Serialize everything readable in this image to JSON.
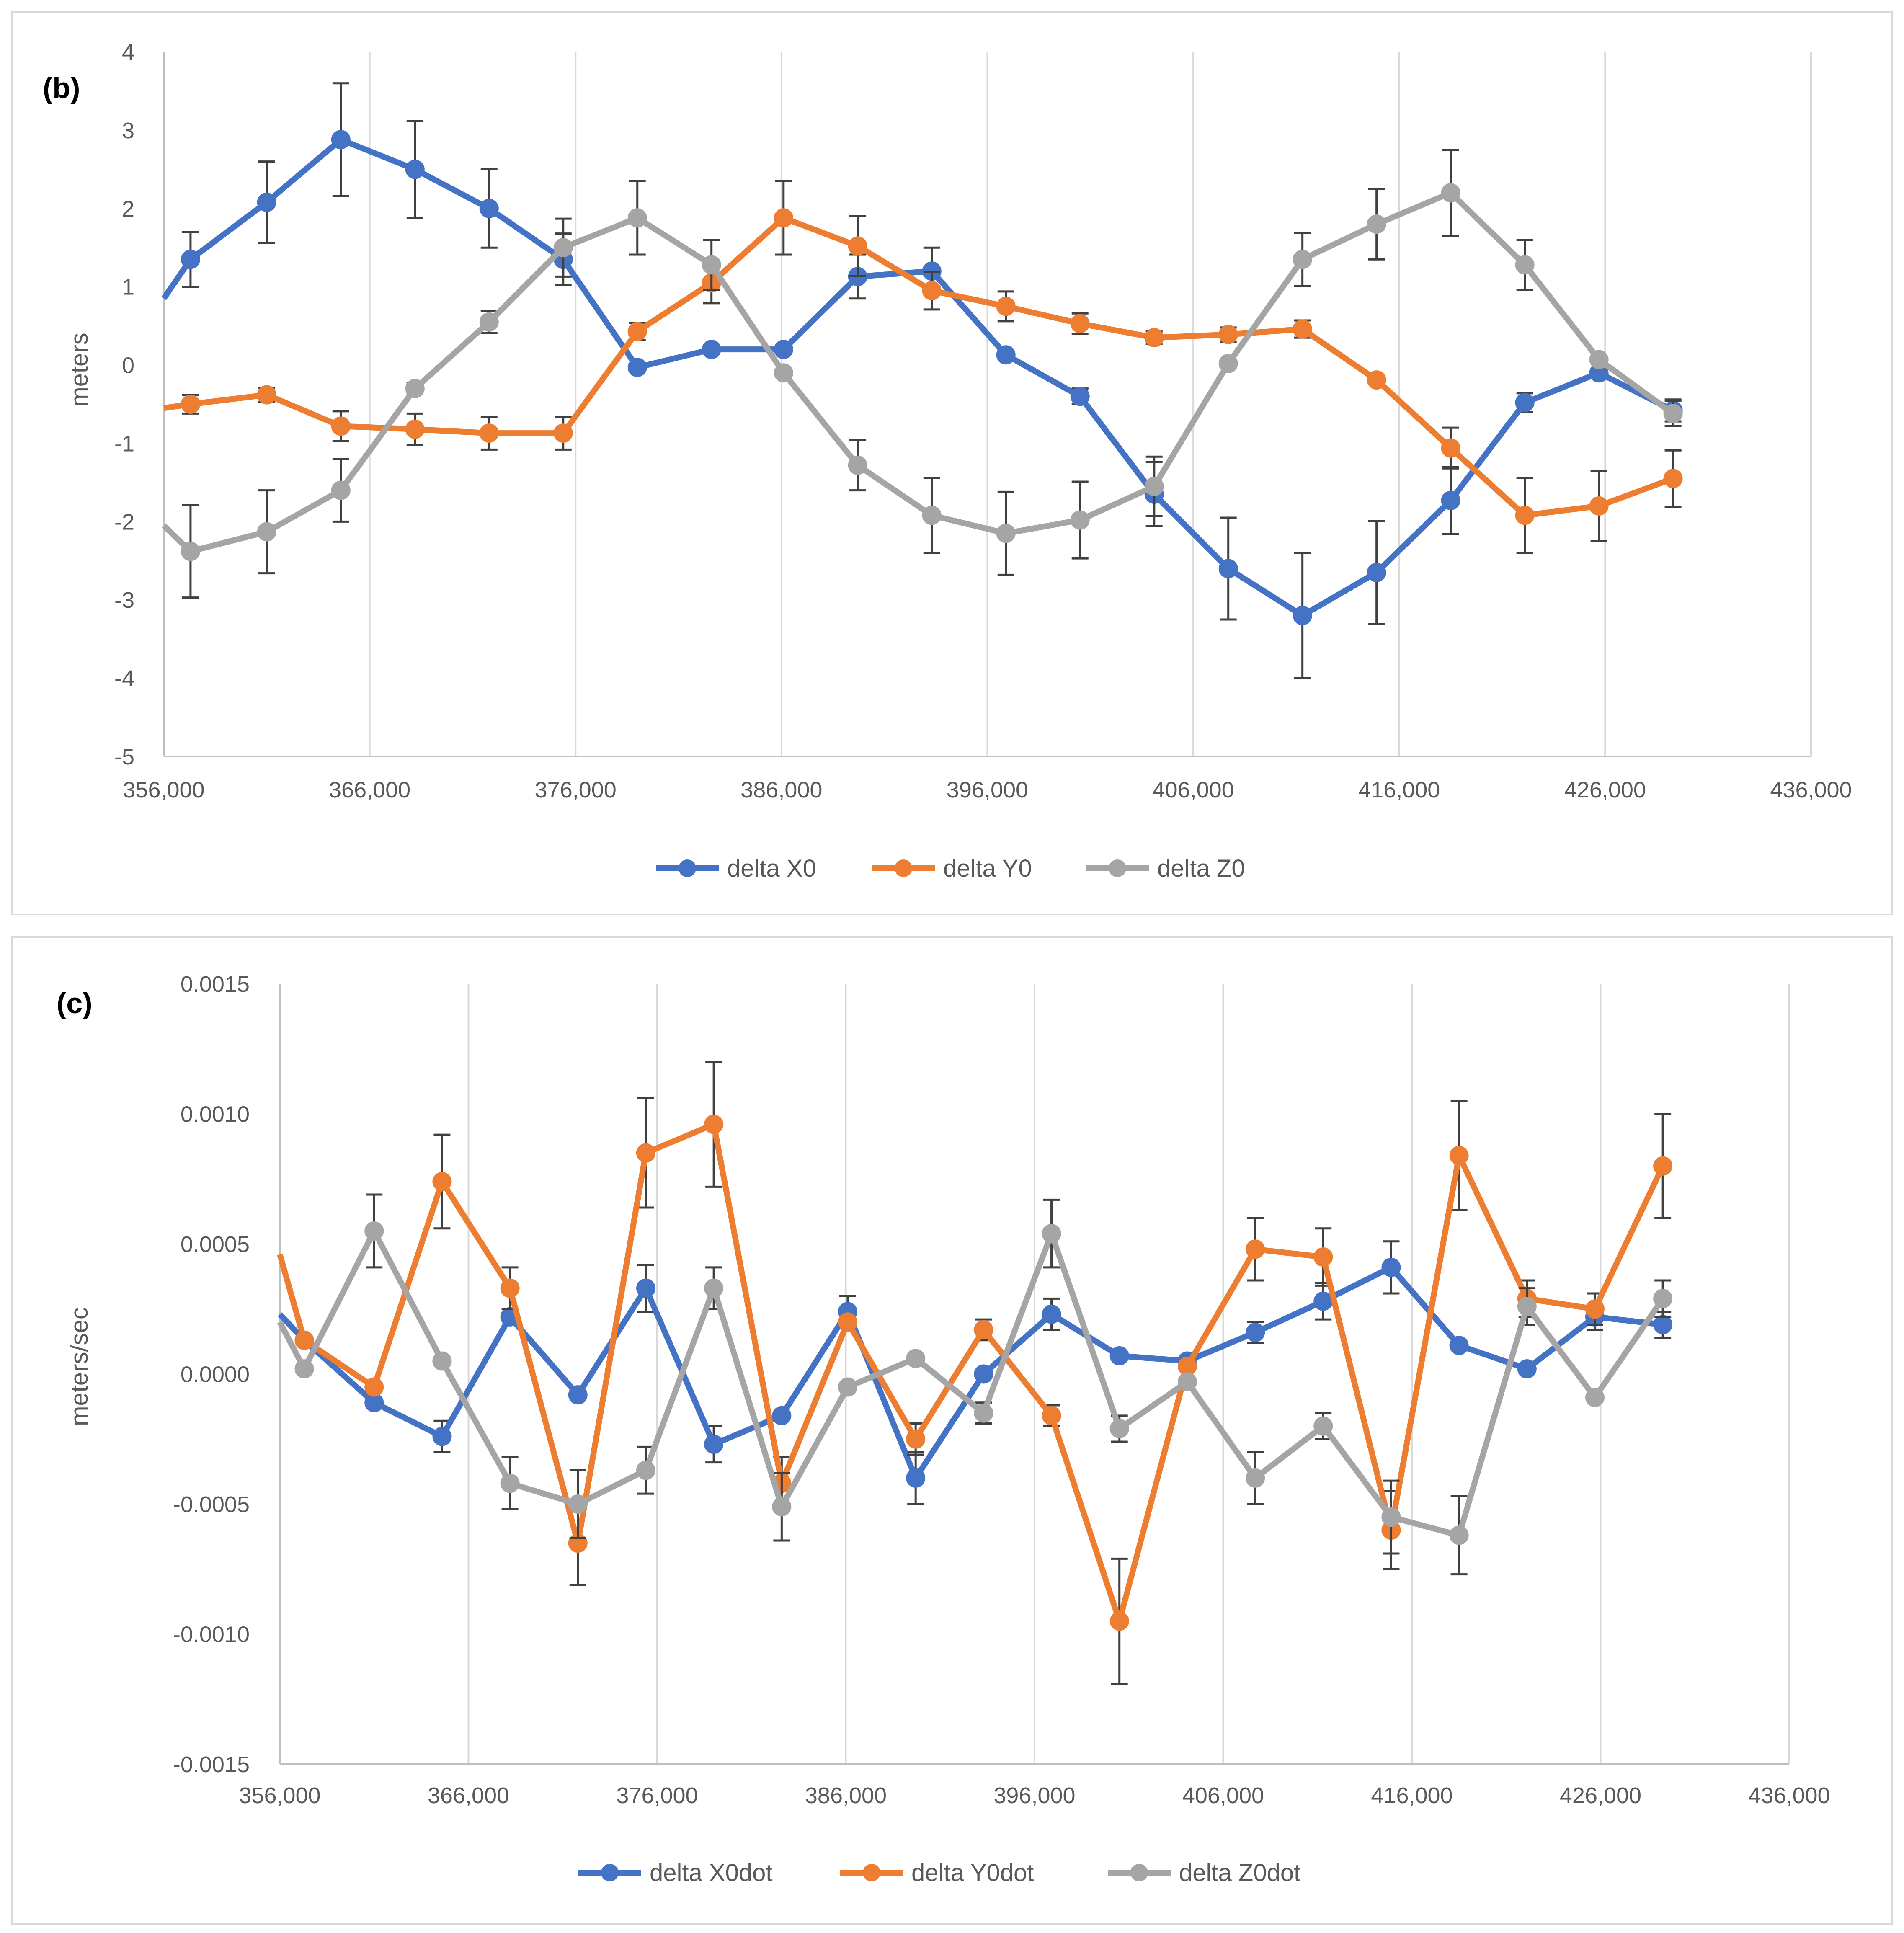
{
  "colors": {
    "series1": "#4472c4",
    "series2": "#ed7d31",
    "series3": "#a5a5a5",
    "grid": "#d9d9d9",
    "axis": "#bfbfbf",
    "error_bar": "#404040",
    "text": "#595959"
  },
  "chart_data": [
    {
      "id": "b",
      "type": "line",
      "panel_label": "(b)",
      "title": "",
      "xlabel": "",
      "ylabel": "meters",
      "xlim": [
        356000,
        436000
      ],
      "ylim": [
        -5,
        4
      ],
      "x_ticks": [
        356000,
        366000,
        376000,
        386000,
        396000,
        406000,
        416000,
        426000,
        436000
      ],
      "x_tick_labels": [
        "356,000",
        "366,000",
        "376,000",
        "386,000",
        "396,000",
        "406,000",
        "416,000",
        "426,000",
        "436,000"
      ],
      "y_ticks": [
        4,
        3,
        2,
        1,
        0,
        -1,
        -2,
        -3,
        -4,
        -5
      ],
      "y_tick_labels": [
        "4",
        "3",
        "2",
        "1",
        "0",
        "-1",
        "-2",
        "-3",
        "-4",
        "-5"
      ],
      "grid": "vertical",
      "legend": "bottom",
      "series": [
        {
          "name": "delta X0",
          "color": "#4472c4",
          "x": [
            356000,
            357300,
            361000,
            364600,
            368200,
            371800,
            375400,
            379000,
            382600,
            386100,
            389700,
            393300,
            396900,
            400500,
            404100,
            407700,
            411300,
            414900,
            418500,
            422100,
            425700,
            429300
          ],
          "y": [
            0.85,
            1.35,
            2.08,
            2.88,
            2.5,
            2.0,
            1.35,
            -0.03,
            0.2,
            0.2,
            1.13,
            1.2,
            0.13,
            -0.4,
            -1.65,
            -2.6,
            -3.2,
            -2.65,
            -1.73,
            -0.48,
            -0.1,
            -0.58
          ],
          "err": [
            0,
            0.35,
            0.52,
            0.72,
            0.62,
            0.5,
            0.33,
            0.03,
            0.05,
            0.05,
            0.28,
            0.3,
            0.03,
            0.1,
            0.41,
            0.65,
            0.8,
            0.66,
            0.43,
            0.12,
            0.03,
            0.14
          ],
          "markers": [
            false,
            true,
            true,
            true,
            true,
            true,
            true,
            true,
            true,
            true,
            true,
            true,
            true,
            true,
            true,
            true,
            true,
            true,
            true,
            true,
            true,
            true
          ]
        },
        {
          "name": "delta Y0",
          "color": "#ed7d31",
          "x": [
            356000,
            357300,
            361000,
            364600,
            368200,
            371800,
            375400,
            379000,
            382600,
            386100,
            389700,
            393300,
            396900,
            400500,
            404100,
            407700,
            411300,
            414900,
            418500,
            422100,
            425700,
            429300
          ],
          "y": [
            -0.55,
            -0.5,
            -0.38,
            -0.78,
            -0.82,
            -0.87,
            -0.87,
            0.43,
            1.05,
            1.88,
            1.52,
            0.95,
            0.75,
            0.53,
            0.35,
            0.39,
            0.46,
            -0.19,
            -1.06,
            -1.92,
            -1.8,
            -1.45
          ],
          "err": [
            0,
            0.12,
            0.09,
            0.19,
            0.2,
            0.21,
            0.21,
            0.11,
            0.26,
            0.47,
            0.38,
            0.24,
            0.19,
            0.13,
            0.08,
            0.09,
            0.11,
            0.05,
            0.26,
            0.48,
            0.45,
            0.36
          ],
          "markers": [
            false,
            true,
            true,
            true,
            true,
            true,
            true,
            true,
            true,
            true,
            true,
            true,
            true,
            true,
            true,
            true,
            true,
            true,
            true,
            true,
            true,
            true
          ]
        },
        {
          "name": "delta Z0",
          "color": "#a5a5a5",
          "x": [
            356000,
            357300,
            361000,
            364600,
            368200,
            371800,
            375400,
            379000,
            382600,
            386100,
            389700,
            393300,
            396900,
            400500,
            404100,
            407700,
            411300,
            414900,
            418500,
            422100,
            425700,
            429300
          ],
          "y": [
            -2.05,
            -2.38,
            -2.13,
            -1.6,
            -0.3,
            0.55,
            1.5,
            1.88,
            1.28,
            -0.1,
            -1.28,
            -1.92,
            -2.15,
            -1.98,
            -1.55,
            0.02,
            1.35,
            1.8,
            2.2,
            1.28,
            0.07,
            -0.62
          ],
          "err": [
            0,
            0.59,
            0.53,
            0.4,
            0.07,
            0.14,
            0.37,
            0.47,
            0.32,
            0.03,
            0.32,
            0.48,
            0.53,
            0.49,
            0.38,
            0.01,
            0.34,
            0.45,
            0.55,
            0.32,
            0.02,
            0.16
          ],
          "markers": [
            false,
            true,
            true,
            true,
            true,
            true,
            true,
            true,
            true,
            true,
            true,
            true,
            true,
            true,
            true,
            true,
            true,
            true,
            true,
            true,
            true,
            true
          ]
        }
      ]
    },
    {
      "id": "c",
      "type": "line",
      "panel_label": "(c)",
      "title": "",
      "xlabel": "",
      "ylabel": "meters/sec",
      "xlim": [
        356000,
        436000
      ],
      "ylim": [
        -0.0015,
        0.0015
      ],
      "x_ticks": [
        356000,
        366000,
        376000,
        386000,
        396000,
        406000,
        416000,
        426000,
        436000
      ],
      "x_tick_labels": [
        "356,000",
        "366,000",
        "376,000",
        "386,000",
        "396,000",
        "406,000",
        "416,000",
        "426,000",
        "436,000"
      ],
      "y_ticks": [
        0.0015,
        0.001,
        0.0005,
        0,
        -0.0005,
        -0.001,
        -0.0015
      ],
      "y_tick_labels": [
        "0.0015",
        "0.0010",
        "0.0005",
        "0.0000",
        "-0.0005",
        "-0.0010",
        "-0.0015"
      ],
      "grid": "vertical",
      "legend": "bottom",
      "series": [
        {
          "name": "delta X0dot",
          "color": "#4472c4",
          "x": [
            356000,
            357300,
            361000,
            364600,
            368200,
            371800,
            375400,
            379000,
            382600,
            386100,
            389700,
            393300,
            396900,
            400500,
            404100,
            407700,
            411300,
            414900,
            418500,
            422100,
            425700,
            429300
          ],
          "y": [
            0.00023,
            0.00013,
            -0.00011,
            -0.00024,
            0.00022,
            -8e-05,
            0.00033,
            -0.00027,
            -0.00016,
            0.00024,
            -0.0004,
            0.0,
            0.00023,
            7e-05,
            5e-05,
            0.00016,
            0.00028,
            0.00041,
            0.00011,
            2e-05,
            0.00022,
            0.00019
          ],
          "err": [
            0,
            0,
            0,
            6e-05,
            0,
            0,
            9e-05,
            7e-05,
            0,
            6e-05,
            0.0001,
            0,
            6e-05,
            0,
            0,
            4e-05,
            7e-05,
            0.0001,
            0,
            0,
            5e-05,
            5e-05
          ],
          "markers": [
            false,
            true,
            true,
            true,
            true,
            true,
            true,
            true,
            true,
            true,
            true,
            true,
            true,
            true,
            true,
            true,
            true,
            true,
            true,
            true,
            true,
            true
          ]
        },
        {
          "name": "delta Y0dot",
          "color": "#ed7d31",
          "x": [
            356000,
            357300,
            361000,
            364600,
            368200,
            371800,
            375400,
            379000,
            382600,
            386100,
            389700,
            393300,
            396900,
            400500,
            404100,
            407700,
            411300,
            414900,
            418500,
            422100,
            425700,
            429300
          ],
          "y": [
            0.00046,
            0.00013,
            -5e-05,
            0.00074,
            0.00033,
            -0.00065,
            0.00085,
            0.00096,
            -0.00042,
            0.0002,
            -0.00025,
            0.00017,
            -0.00016,
            -0.00095,
            3e-05,
            0.00048,
            0.00045,
            -0.0006,
            0.00084,
            0.00029,
            0.00025,
            0.0008
          ],
          "err": [
            0,
            0,
            0,
            0.00018,
            8e-05,
            0.00016,
            0.00021,
            0.00024,
            0.0001,
            0,
            6e-05,
            4e-05,
            4e-05,
            0.00024,
            0,
            0.00012,
            0.00011,
            0.00015,
            0.00021,
            7e-05,
            6e-05,
            0.0002
          ],
          "markers": [
            false,
            true,
            true,
            true,
            true,
            true,
            true,
            true,
            true,
            true,
            true,
            true,
            true,
            true,
            true,
            true,
            true,
            true,
            true,
            true,
            true,
            true
          ]
        },
        {
          "name": "delta Z0dot",
          "color": "#a5a5a5",
          "x": [
            356000,
            357300,
            361000,
            364600,
            368200,
            371800,
            375400,
            379000,
            382600,
            386100,
            389700,
            393300,
            396900,
            400500,
            404100,
            407700,
            411300,
            414900,
            418500,
            422100,
            425700,
            429300
          ],
          "y": [
            0.0002,
            2e-05,
            0.00055,
            5e-05,
            -0.00042,
            -0.0005,
            -0.00037,
            0.00033,
            -0.00051,
            -5e-05,
            6e-05,
            -0.00015,
            0.00054,
            -0.00021,
            -3e-05,
            -0.0004,
            -0.0002,
            -0.00055,
            -0.00062,
            0.00026,
            -9e-05,
            0.00029
          ],
          "err": [
            0,
            0,
            0.00014,
            0,
            0.0001,
            0.00013,
            9e-05,
            8e-05,
            0.00013,
            0,
            0,
            4e-05,
            0.00013,
            5e-05,
            0,
            0.0001,
            5e-05,
            0.00014,
            0.00015,
            7e-05,
            0,
            7e-05
          ],
          "markers": [
            false,
            true,
            true,
            true,
            true,
            true,
            true,
            true,
            true,
            true,
            true,
            true,
            true,
            true,
            true,
            true,
            true,
            true,
            true,
            true,
            true,
            true
          ]
        }
      ]
    }
  ]
}
